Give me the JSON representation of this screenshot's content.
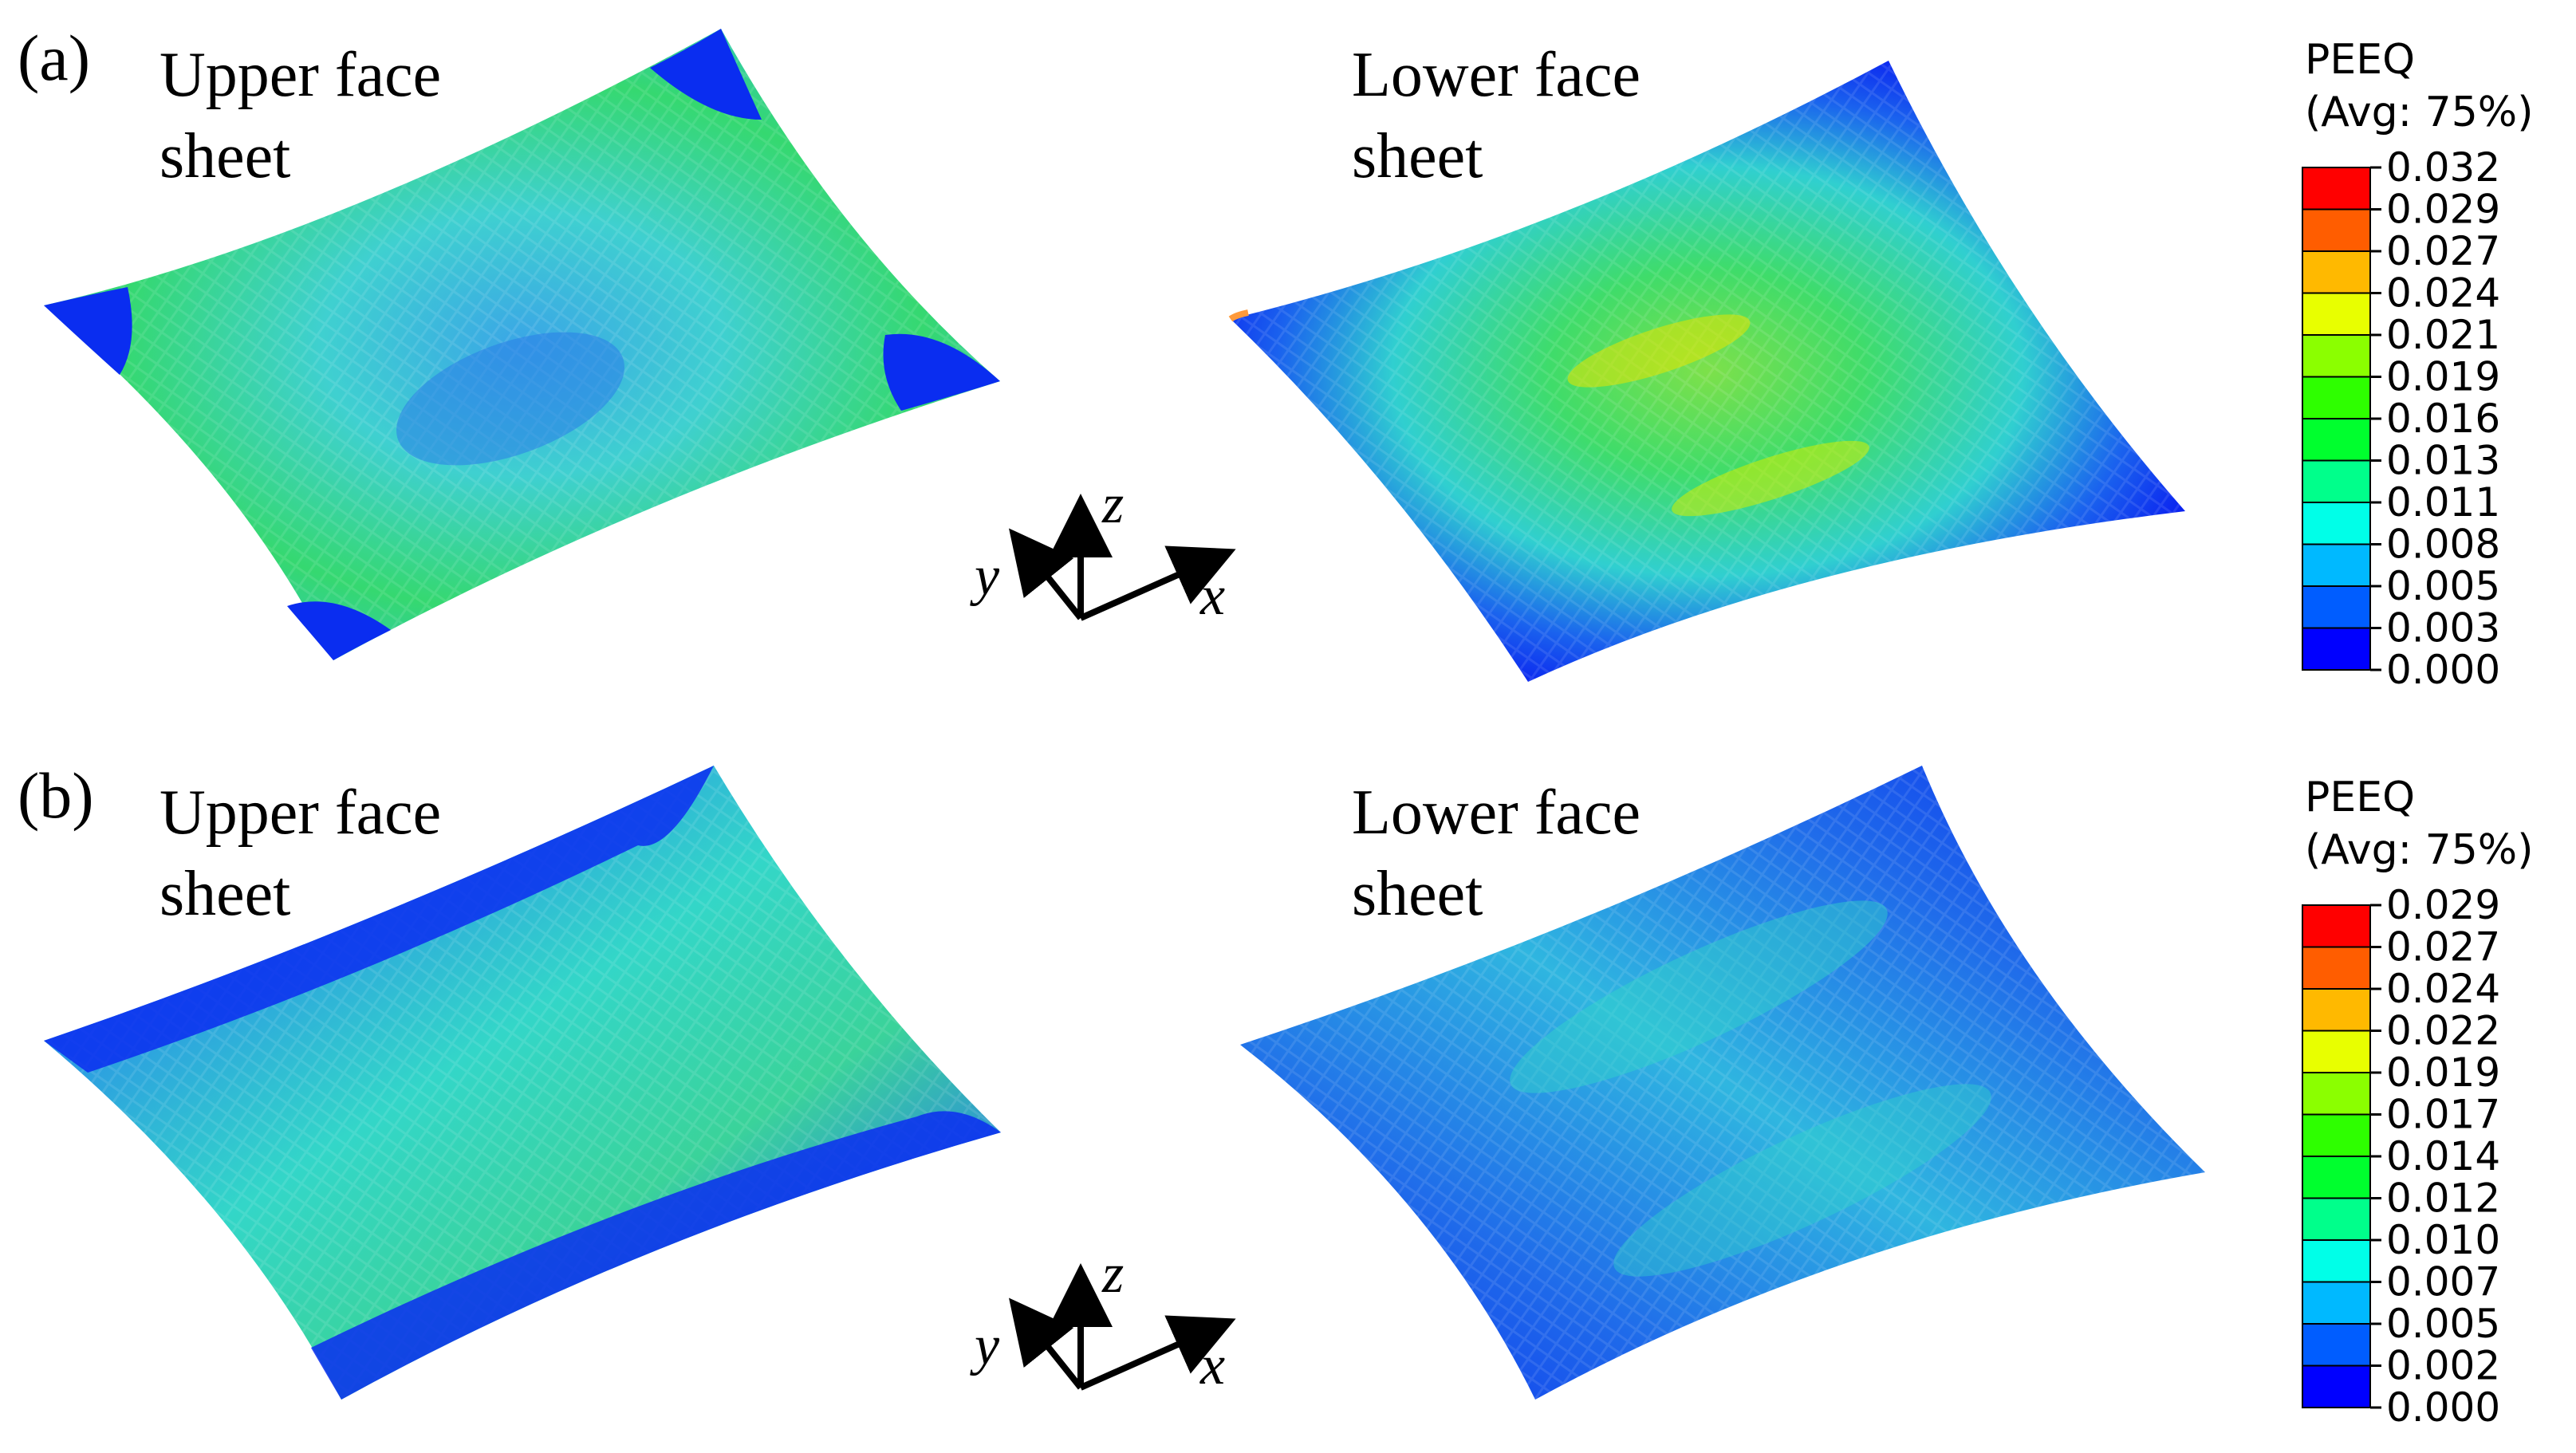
{
  "colors": {
    "contour_scale": [
      "#0000ff",
      "#005dff",
      "#00b9ff",
      "#00ffe8",
      "#00ff8b",
      "#00ff2e",
      "#2eff00",
      "#8bff00",
      "#e8ff00",
      "#ffb900",
      "#ff5d00",
      "#ff0000"
    ],
    "plate_low": "#0a2df0",
    "plate_mid": "#2fc8d8",
    "plate_high": "#2fdc6a",
    "plate_peak": "#e6e600"
  },
  "panels": [
    {
      "tag": "(a)",
      "upper_title": [
        "Upper face",
        "sheet"
      ],
      "lower_title": [
        "Lower face",
        "sheet"
      ],
      "axes": {
        "x": "x",
        "y": "y",
        "z": "z"
      },
      "legend": {
        "title": [
          "PEEQ",
          "(Avg: 75%)"
        ],
        "ticks": [
          "0.032",
          "0.029",
          "0.027",
          "0.024",
          "0.021",
          "0.019",
          "0.016",
          "0.013",
          "0.011",
          "0.008",
          "0.005",
          "0.003",
          "0.000"
        ]
      }
    },
    {
      "tag": "(b)",
      "upper_title": [
        "Upper face",
        "sheet"
      ],
      "lower_title": [
        "Lower face",
        "sheet"
      ],
      "axes": {
        "x": "x",
        "y": "y",
        "z": "z"
      },
      "legend": {
        "title": [
          "PEEQ",
          "(Avg: 75%)"
        ],
        "ticks": [
          "0.029",
          "0.027",
          "0.024",
          "0.022",
          "0.019",
          "0.017",
          "0.014",
          "0.012",
          "0.010",
          "0.007",
          "0.005",
          "0.002",
          "0.000"
        ]
      }
    }
  ]
}
